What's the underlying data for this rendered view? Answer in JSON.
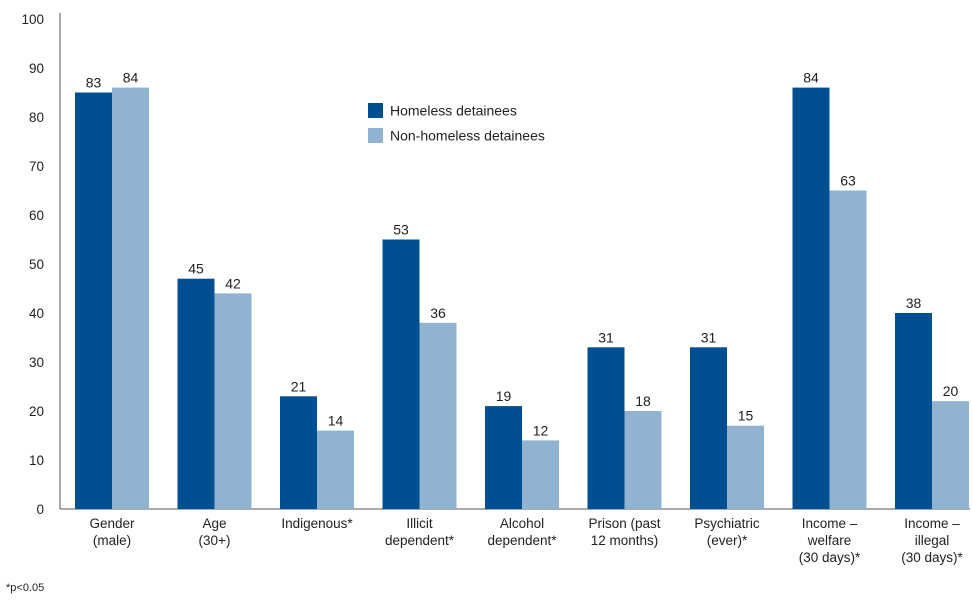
{
  "chart_data": {
    "type": "bar",
    "title": "",
    "xlabel": "",
    "ylabel": "",
    "ylim": [
      0,
      100
    ],
    "yticks": [
      0,
      10,
      20,
      30,
      40,
      50,
      60,
      70,
      80,
      90,
      100
    ],
    "grid": false,
    "legend_position": "top-center",
    "categories": [
      [
        "Gender",
        "(male)"
      ],
      [
        "Age",
        "(30+)"
      ],
      [
        "Indigenous*"
      ],
      [
        "Illicit",
        "dependent*"
      ],
      [
        "Alcohol",
        "dependent*"
      ],
      [
        "Prison (past",
        "12 months)"
      ],
      [
        "Psychiatric",
        "(ever)*"
      ],
      [
        "Income –",
        "welfare",
        "(30 days)*"
      ],
      [
        "Income –",
        "illegal",
        "(30 days)*"
      ]
    ],
    "series": [
      {
        "name": "Homeless detainees",
        "color": "#004f91",
        "values": [
          83,
          45,
          21,
          53,
          19,
          31,
          31,
          84,
          38
        ],
        "bar_values": [
          85,
          47,
          23,
          55,
          21,
          33,
          33,
          86,
          40
        ]
      },
      {
        "name": "Non-homeless detainees",
        "color": "#91b3d2",
        "values": [
          84,
          42,
          14,
          36,
          12,
          18,
          15,
          63,
          20
        ],
        "bar_values": [
          86,
          44,
          16,
          38,
          14,
          20,
          17,
          65,
          22
        ]
      }
    ]
  },
  "footnote": "*p<0.05"
}
